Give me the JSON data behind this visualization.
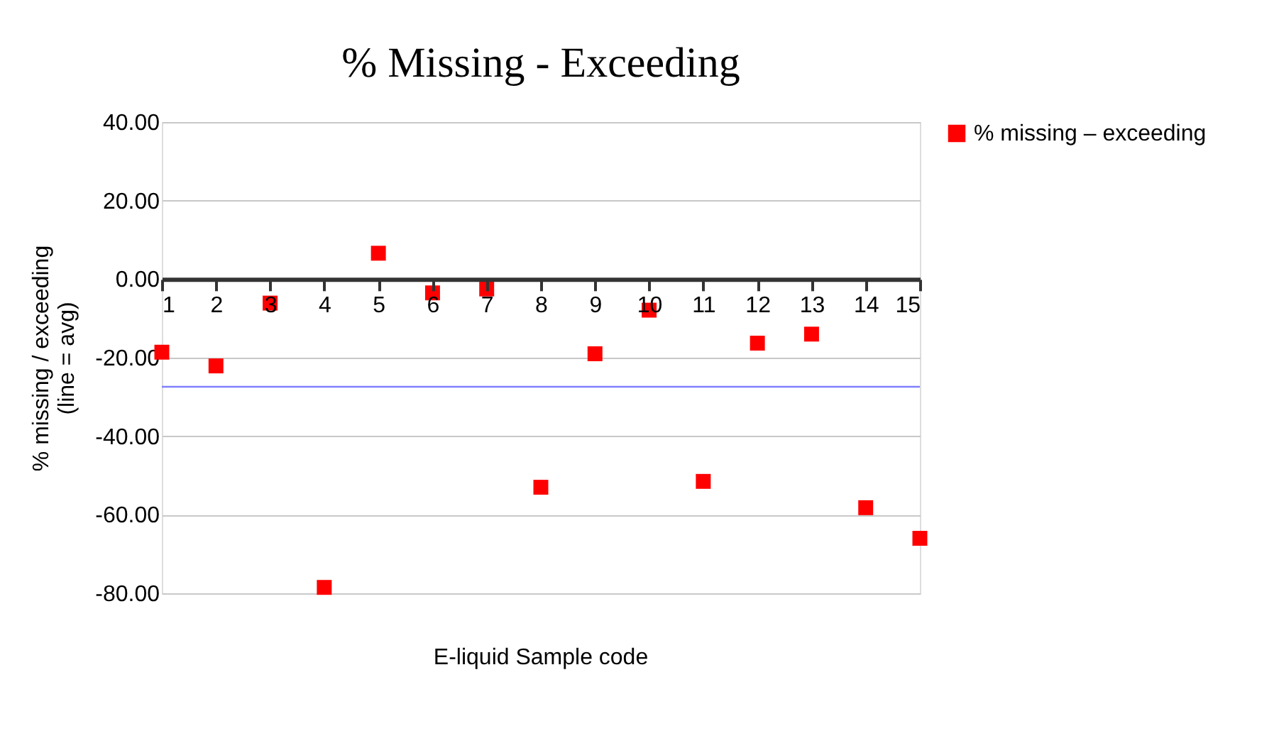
{
  "chart_data": {
    "type": "scatter",
    "title": "% Missing - Exceeding",
    "xlabel": "E-liquid Sample code",
    "ylabel": "% missing / exceeding\n(line = avg)",
    "x": [
      1,
      2,
      3,
      4,
      5,
      6,
      7,
      8,
      9,
      10,
      11,
      12,
      13,
      14,
      15
    ],
    "series": [
      {
        "name": "% missing – exceeding",
        "color": "#ff0000",
        "values": [
          -18.6,
          -22.1,
          -6.1,
          -78.5,
          6.6,
          -3.5,
          -2.5,
          -53.0,
          -19.0,
          -7.9,
          -51.5,
          -16.3,
          -14.0,
          -58.2,
          -66.0
        ]
      }
    ],
    "xlim": [
      1,
      15
    ],
    "xticks": [
      1,
      2,
      3,
      4,
      5,
      6,
      7,
      8,
      9,
      10,
      11,
      12,
      13,
      14,
      15
    ],
    "ylim": [
      -80,
      40
    ],
    "yticks": [
      {
        "value": -80,
        "label": "-80.00"
      },
      {
        "value": -60,
        "label": "-60.00"
      },
      {
        "value": -40,
        "label": "-40.00"
      },
      {
        "value": -20,
        "label": "-20.00"
      },
      {
        "value": 0,
        "label": "0.00"
      },
      {
        "value": 20,
        "label": "20.00"
      },
      {
        "value": 40,
        "label": "40.00"
      }
    ],
    "ref_lines": [
      {
        "axis": "y",
        "value": -27.4,
        "color": "#8080ff"
      }
    ],
    "grid": "y",
    "legend": "top right",
    "marker": "square"
  }
}
